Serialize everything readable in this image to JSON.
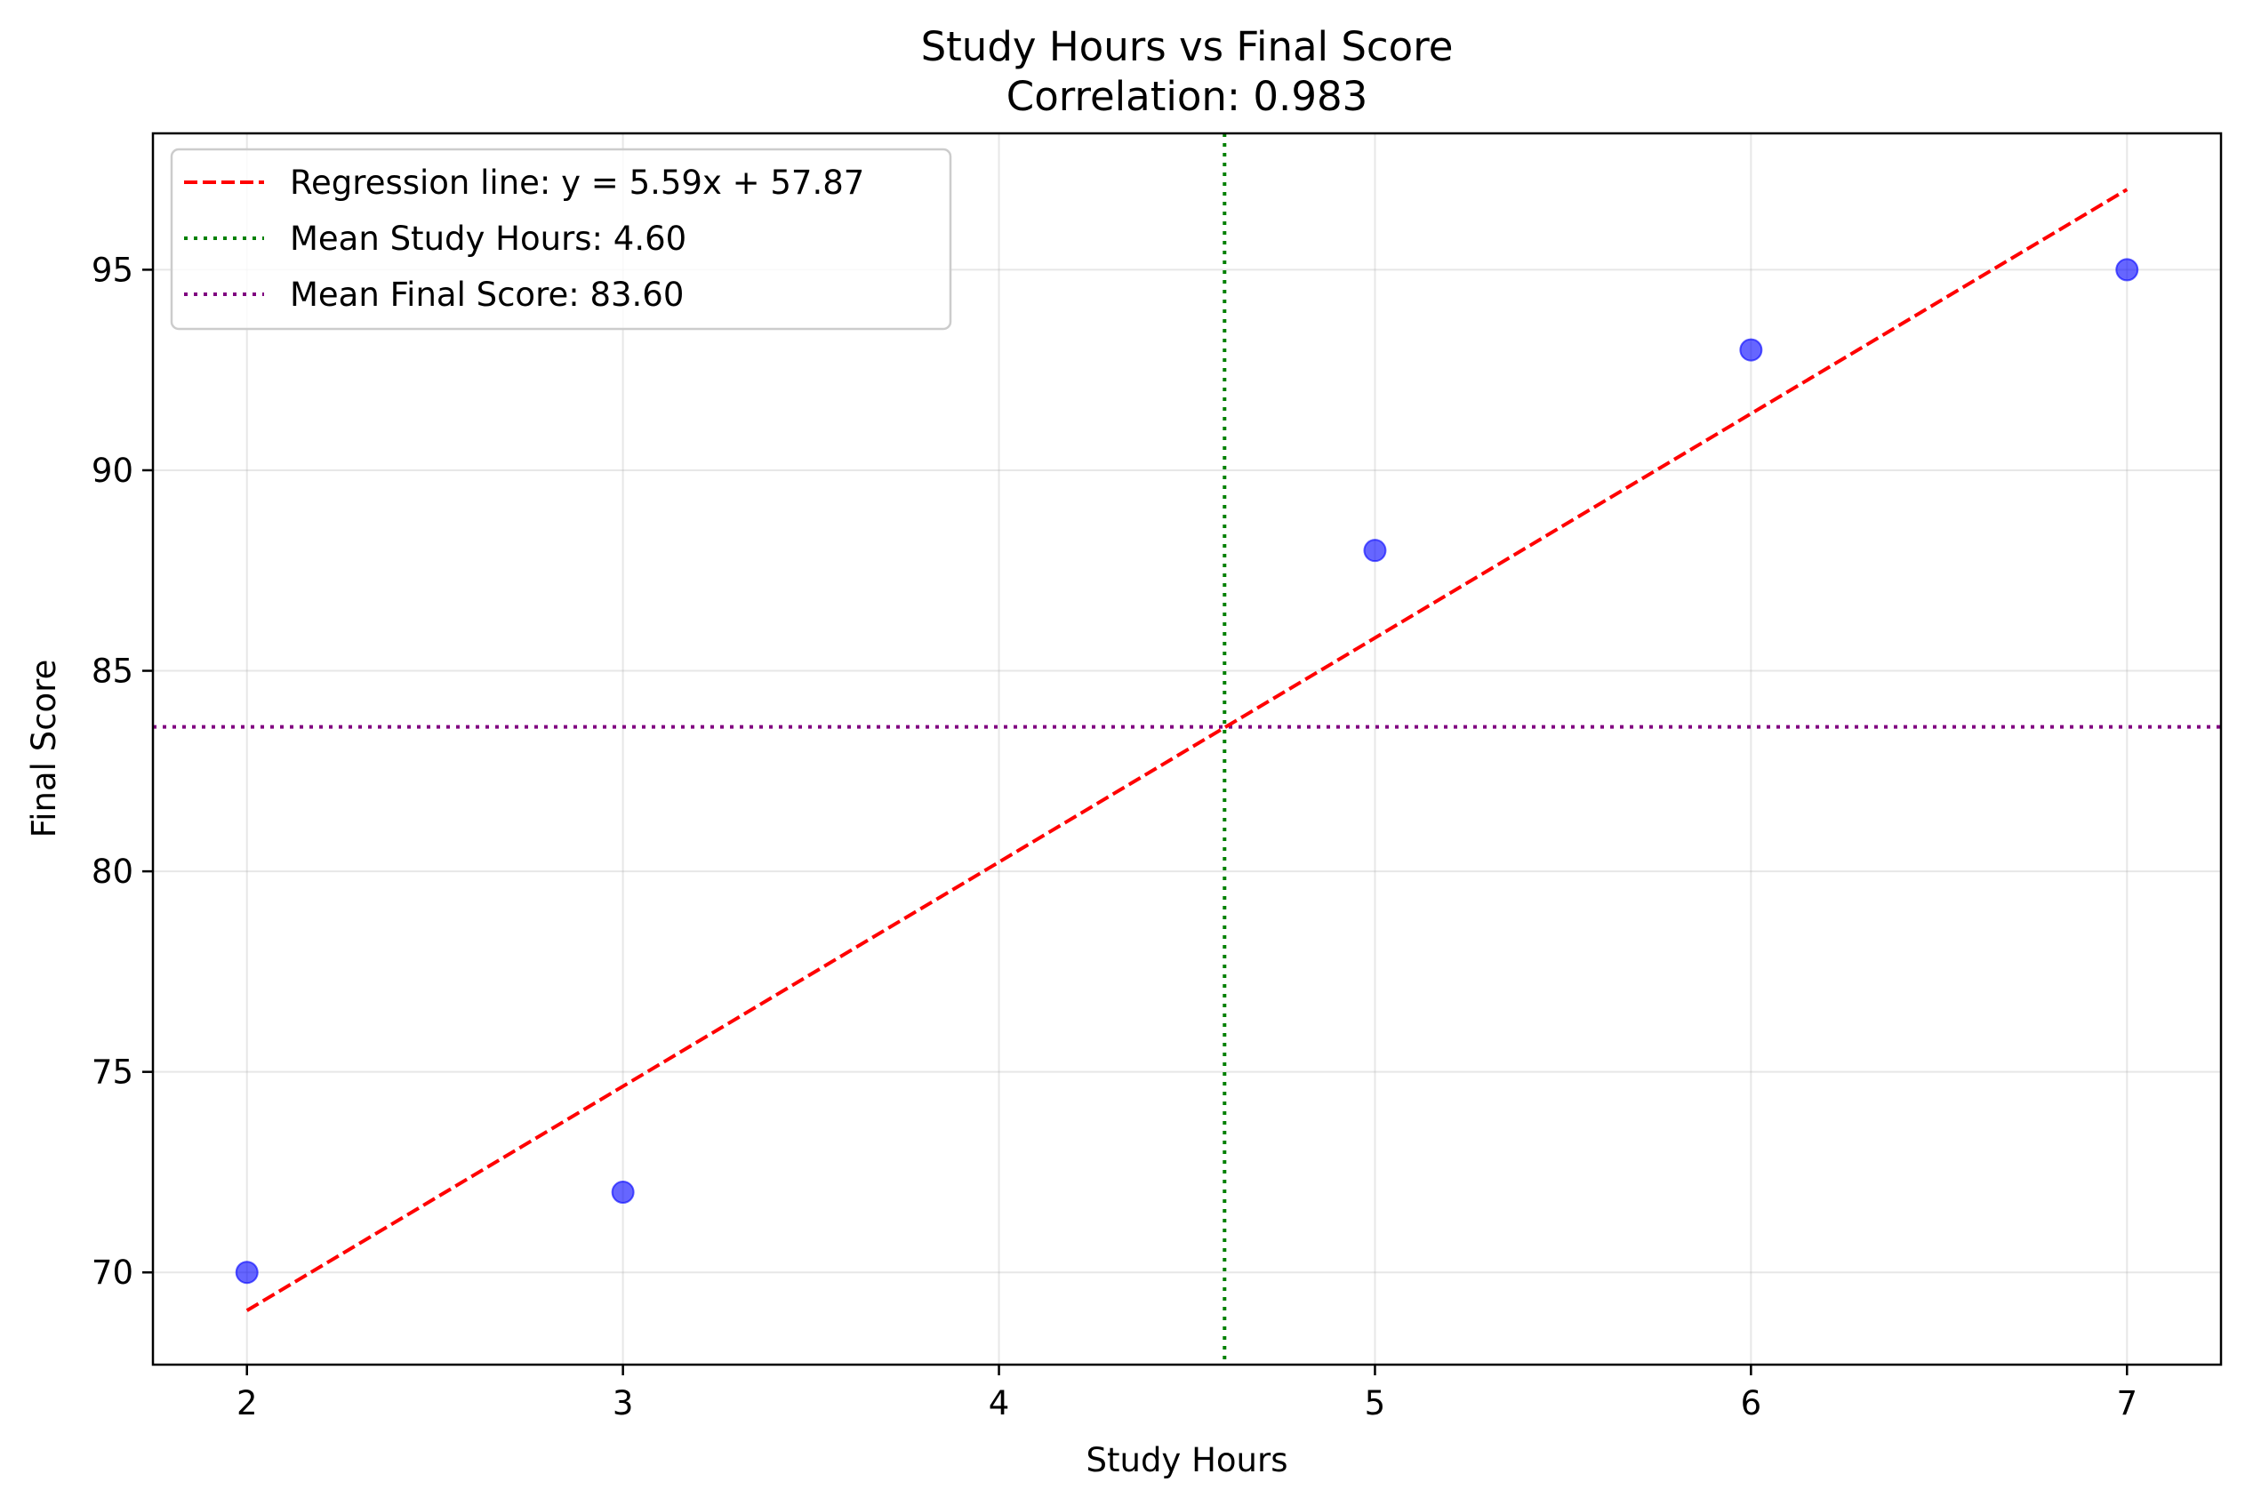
{
  "chart_data": {
    "type": "scatter",
    "title": "Study Hours vs Final Score",
    "subtitle": "Correlation: 0.983",
    "xlabel": "Study Hours",
    "ylabel": "Final Score",
    "xlim": [
      1.75,
      7.25
    ],
    "ylim": [
      67.7,
      98.4
    ],
    "xticks": [
      2,
      3,
      4,
      5,
      6,
      7
    ],
    "yticks": [
      70,
      75,
      80,
      85,
      90,
      95
    ],
    "grid": true,
    "legend_position": "top-left",
    "series": [
      {
        "type": "scatter",
        "color": "#0000ff",
        "opacity": 0.6,
        "points": [
          {
            "x": 2,
            "y": 70
          },
          {
            "x": 3,
            "y": 72
          },
          {
            "x": 5,
            "y": 88
          },
          {
            "x": 6,
            "y": 93
          },
          {
            "x": 7,
            "y": 95
          }
        ]
      },
      {
        "type": "line",
        "name": "Regression line: y = 5.59x + 57.87",
        "color": "#ff0000",
        "style": "dashed",
        "slope": 5.59,
        "intercept": 57.87,
        "x_range": [
          2,
          7
        ]
      },
      {
        "type": "vline",
        "name": "Mean Study Hours: 4.60",
        "color": "#008000",
        "style": "dotted",
        "x": 4.6
      },
      {
        "type": "hline",
        "name": "Mean Final Score: 83.60",
        "color": "#800080",
        "style": "dotted",
        "y": 83.6
      }
    ]
  }
}
